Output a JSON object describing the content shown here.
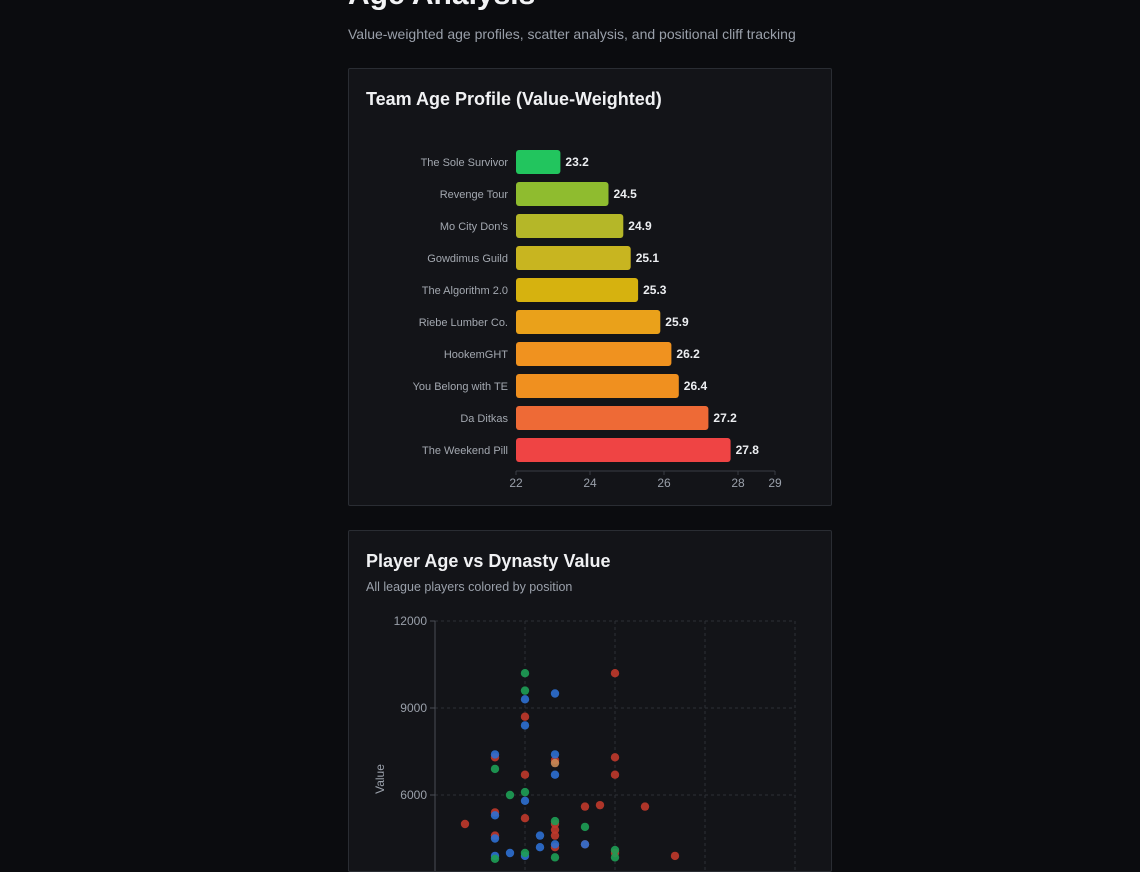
{
  "header": {
    "title": "Age Analysis",
    "subtitle": "Value-weighted age profiles, scatter analysis, and positional cliff tracking"
  },
  "age_profile_card": {
    "title": "Team Age Profile (Value-Weighted)"
  },
  "scatter_card": {
    "title": "Player Age vs Dynasty Value",
    "subtitle": "All league players colored by position"
  },
  "colors": {
    "background": "#0b0c0f",
    "card": "#131418",
    "qb": "#c0392b",
    "rb": "#2e6fd1",
    "wr": "#1e9e55",
    "te": "#c98a55"
  },
  "chart_data": [
    {
      "type": "bar",
      "orientation": "horizontal",
      "title": "Team Age Profile (Value-Weighted)",
      "categories": [
        "The Sole Survivor",
        "Revenge Tour",
        "Mo City Don's",
        "Gowdimus Guild",
        "The Algorithm 2.0",
        "Riebe Lumber Co.",
        "HookemGHT",
        "You Belong with TE",
        "Da Ditkas",
        "The Weekend Pill"
      ],
      "values": [
        23.2,
        24.5,
        24.9,
        25.1,
        25.3,
        25.9,
        26.2,
        26.4,
        27.2,
        27.8
      ],
      "bar_colors": [
        "#22c55e",
        "#8fbc2f",
        "#b5b728",
        "#c8b520",
        "#d6b20f",
        "#eaa11a",
        "#f0921f",
        "#f0901f",
        "#ee6a36",
        "#ef4444"
      ],
      "xlim": [
        22,
        29
      ],
      "xticks": [
        22,
        24,
        26,
        28,
        29
      ],
      "grid": false
    },
    {
      "type": "scatter",
      "title": "Player Age vs Dynasty Value",
      "xlabel": "",
      "ylabel": "Value",
      "ylim": [
        0,
        12000
      ],
      "yticks": [
        6000,
        9000,
        12000
      ],
      "xlim": [
        20,
        32
      ],
      "grid": true,
      "series": [
        {
          "color": "#c0392b",
          "points": [
            [
              23,
              8700
            ],
            [
              22,
              7300
            ],
            [
              24,
              7200
            ],
            [
              26,
              10200
            ],
            [
              26,
              7300
            ],
            [
              26,
              6700
            ],
            [
              23,
              6700
            ],
            [
              22,
              5400
            ],
            [
              21,
              5000
            ],
            [
              23,
              5200
            ],
            [
              25,
              5600
            ],
            [
              25.5,
              5650
            ],
            [
              27,
              5600
            ],
            [
              24,
              5000
            ],
            [
              24,
              4800
            ],
            [
              24,
              4600
            ],
            [
              25,
              4300
            ],
            [
              24,
              4200
            ],
            [
              26,
              4000
            ],
            [
              22,
              4600
            ],
            [
              28,
              3900
            ]
          ]
        },
        {
          "color": "#2e6fd1",
          "points": [
            [
              23,
              9300
            ],
            [
              24,
              9500
            ],
            [
              23,
              8400
            ],
            [
              22,
              7400
            ],
            [
              24,
              7400
            ],
            [
              24,
              6700
            ],
            [
              23,
              5800
            ],
            [
              22,
              5300
            ],
            [
              23.5,
              4600
            ],
            [
              22,
              4500
            ],
            [
              23.5,
              4200
            ],
            [
              24,
              4300
            ],
            [
              25,
              4300
            ],
            [
              22,
              3900
            ],
            [
              23,
              3900
            ],
            [
              22.5,
              4000
            ]
          ]
        },
        {
          "color": "#1e9e55",
          "points": [
            [
              23,
              10200
            ],
            [
              23,
              9600
            ],
            [
              22,
              6900
            ],
            [
              22.5,
              6000
            ],
            [
              23,
              6100
            ],
            [
              24,
              5100
            ],
            [
              25,
              4900
            ],
            [
              26,
              4100
            ],
            [
              22,
              3800
            ],
            [
              24,
              3850
            ],
            [
              26,
              3850
            ],
            [
              23,
              4000
            ]
          ]
        },
        {
          "color": "#c98a55",
          "points": [
            [
              24,
              7100
            ]
          ]
        }
      ]
    }
  ]
}
